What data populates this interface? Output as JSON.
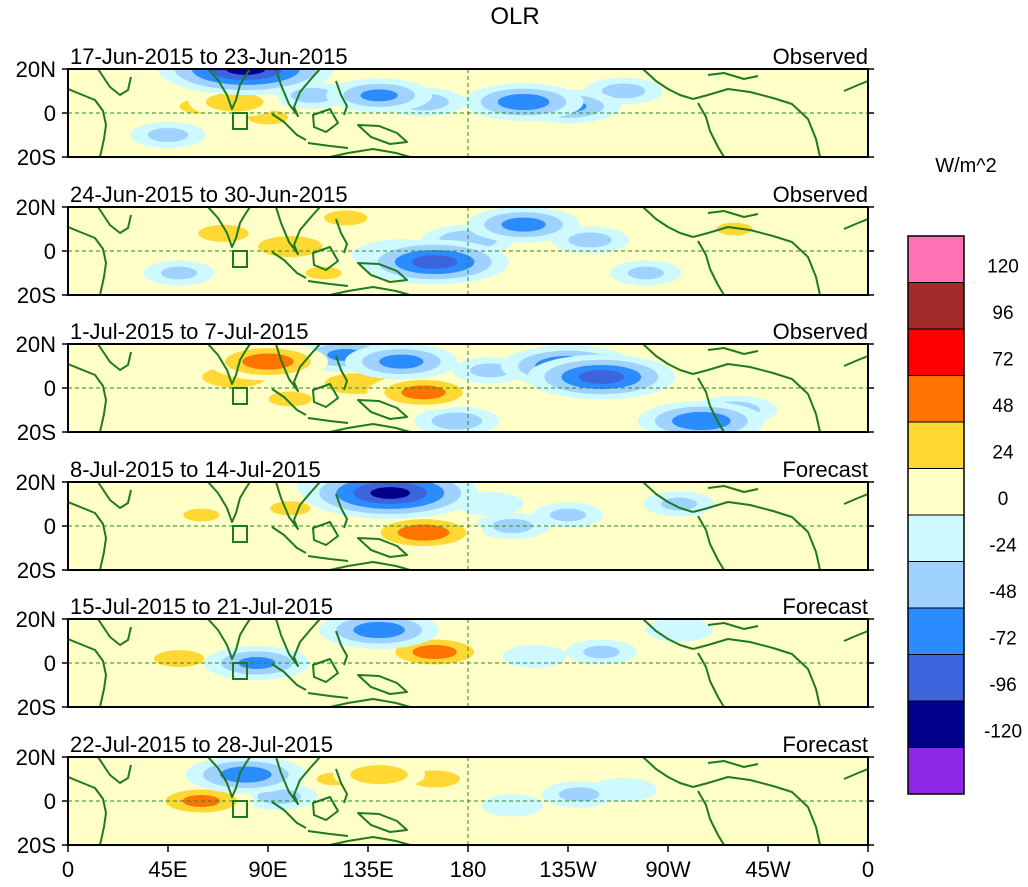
{
  "title": "OLR",
  "colorbar": {
    "unit": "W/m^2",
    "levels": [
      "120",
      "96",
      "72",
      "48",
      "24",
      "0",
      "-24",
      "-48",
      "-72",
      "-96",
      "-120"
    ],
    "colors": [
      "#ff73b6",
      "#a52a2a",
      "#ff0000",
      "#ff7400",
      "#ffd834",
      "#ffffc8",
      "#cdf9ff",
      "#a0d2ff",
      "#2a8cff",
      "#3c64dc",
      "#00008c",
      "#8c28e6"
    ]
  },
  "y_ticks": [
    "20N",
    "0",
    "20S"
  ],
  "x_ticks": [
    "0",
    "45E",
    "90E",
    "135E",
    "180",
    "135W",
    "90W",
    "45W",
    "0"
  ],
  "panels": [
    {
      "period": "17-Jun-2015 to 23-Jun-2015",
      "status": "Observed"
    },
    {
      "period": "24-Jun-2015 to 30-Jun-2015",
      "status": "Observed"
    },
    {
      "period": "1-Jul-2015 to 7-Jul-2015",
      "status": "Observed"
    },
    {
      "period": "8-Jul-2015 to 14-Jul-2015",
      "status": "Forecast"
    },
    {
      "period": "15-Jul-2015 to 21-Jul-2015",
      "status": "Forecast"
    },
    {
      "period": "22-Jul-2015 to 28-Jul-2015",
      "status": "Forecast"
    }
  ],
  "anomalies": [
    [
      {
        "lon": 75,
        "lat": 5,
        "v": 40
      },
      {
        "lon": 60,
        "lat": 3,
        "v": 30
      },
      {
        "lon": 90,
        "lat": -2,
        "v": 28
      },
      {
        "lon": 30,
        "lat": 8,
        "v": 15
      },
      {
        "lon": 85,
        "lat": 18,
        "v": -60
      },
      {
        "lon": 80,
        "lat": 20,
        "v": -100
      },
      {
        "lon": 140,
        "lat": 8,
        "v": -50
      },
      {
        "lon": 160,
        "lat": 5,
        "v": -35
      },
      {
        "lon": 205,
        "lat": 5,
        "v": -60
      },
      {
        "lon": 225,
        "lat": 3,
        "v": -50
      },
      {
        "lon": 250,
        "lat": 10,
        "v": -30
      },
      {
        "lon": 110,
        "lat": 8,
        "v": -30
      },
      {
        "lon": 330,
        "lat": 5,
        "v": 18
      },
      {
        "lon": 45,
        "lat": -10,
        "v": -28
      },
      {
        "lon": 300,
        "lat": -5,
        "v": 8
      },
      {
        "lon": 180,
        "lat": -8,
        "v": 12
      }
    ],
    [
      {
        "lon": 70,
        "lat": 8,
        "v": 35
      },
      {
        "lon": 100,
        "lat": 2,
        "v": 45
      },
      {
        "lon": 125,
        "lat": 15,
        "v": 30
      },
      {
        "lon": 150,
        "lat": -2,
        "v": -45
      },
      {
        "lon": 165,
        "lat": -5,
        "v": -80
      },
      {
        "lon": 205,
        "lat": 12,
        "v": -55
      },
      {
        "lon": 235,
        "lat": 5,
        "v": -30
      },
      {
        "lon": 180,
        "lat": 5,
        "v": -40
      },
      {
        "lon": 40,
        "lat": 10,
        "v": 18
      },
      {
        "lon": 260,
        "lat": -10,
        "v": -25
      },
      {
        "lon": 300,
        "lat": 10,
        "v": 25
      },
      {
        "lon": 330,
        "lat": 2,
        "v": 15
      },
      {
        "lon": 50,
        "lat": -10,
        "v": -25
      },
      {
        "lon": 115,
        "lat": -10,
        "v": 25
      }
    ],
    [
      {
        "lon": 90,
        "lat": 12,
        "v": 60
      },
      {
        "lon": 75,
        "lat": 5,
        "v": 45
      },
      {
        "lon": 130,
        "lat": 2,
        "v": 45
      },
      {
        "lon": 160,
        "lat": -2,
        "v": 55
      },
      {
        "lon": 100,
        "lat": -5,
        "v": 30
      },
      {
        "lon": 125,
        "lat": 15,
        "v": -50
      },
      {
        "lon": 150,
        "lat": 12,
        "v": -55
      },
      {
        "lon": 225,
        "lat": 10,
        "v": -70
      },
      {
        "lon": 240,
        "lat": 5,
        "v": -80
      },
      {
        "lon": 285,
        "lat": -15,
        "v": -65
      },
      {
        "lon": 300,
        "lat": -10,
        "v": -35
      },
      {
        "lon": 190,
        "lat": 8,
        "v": -28
      },
      {
        "lon": 40,
        "lat": 5,
        "v": 20
      },
      {
        "lon": 340,
        "lat": 3,
        "v": 15
      },
      {
        "lon": 175,
        "lat": -15,
        "v": -35
      }
    ],
    [
      {
        "lon": 145,
        "lat": 15,
        "v": -100
      },
      {
        "lon": 130,
        "lat": 18,
        "v": -60
      },
      {
        "lon": 160,
        "lat": -3,
        "v": 60
      },
      {
        "lon": 60,
        "lat": 5,
        "v": 25
      },
      {
        "lon": 100,
        "lat": 8,
        "v": 28
      },
      {
        "lon": 105,
        "lat": -10,
        "v": 20
      },
      {
        "lon": 200,
        "lat": 0,
        "v": -28
      },
      {
        "lon": 225,
        "lat": 5,
        "v": -25
      },
      {
        "lon": 275,
        "lat": 10,
        "v": -25
      },
      {
        "lon": 190,
        "lat": 10,
        "v": -22
      },
      {
        "lon": 40,
        "lat": -15,
        "v": 15
      },
      {
        "lon": 320,
        "lat": -10,
        "v": 10
      },
      {
        "lon": 250,
        "lat": -12,
        "v": 8
      }
    ],
    [
      {
        "lon": 150,
        "lat": 12,
        "v": 30
      },
      {
        "lon": 165,
        "lat": 5,
        "v": 55
      },
      {
        "lon": 50,
        "lat": 2,
        "v": 35
      },
      {
        "lon": 85,
        "lat": 0,
        "v": -50
      },
      {
        "lon": 140,
        "lat": 15,
        "v": -60
      },
      {
        "lon": 110,
        "lat": 5,
        "v": 20
      },
      {
        "lon": 240,
        "lat": 5,
        "v": -25
      },
      {
        "lon": 210,
        "lat": 3,
        "v": -20
      },
      {
        "lon": 275,
        "lat": 15,
        "v": -22
      },
      {
        "lon": 60,
        "lat": 15,
        "v": 22
      },
      {
        "lon": 180,
        "lat": -10,
        "v": 15
      },
      {
        "lon": 300,
        "lat": 12,
        "v": 10
      }
    ],
    [
      {
        "lon": 140,
        "lat": 12,
        "v": 40
      },
      {
        "lon": 165,
        "lat": 10,
        "v": 35
      },
      {
        "lon": 120,
        "lat": 10,
        "v": 25
      },
      {
        "lon": 60,
        "lat": 0,
        "v": 50
      },
      {
        "lon": 80,
        "lat": 12,
        "v": -60
      },
      {
        "lon": 95,
        "lat": 2,
        "v": -30
      },
      {
        "lon": 230,
        "lat": 3,
        "v": -28
      },
      {
        "lon": 250,
        "lat": 5,
        "v": -22
      },
      {
        "lon": 200,
        "lat": -2,
        "v": -18
      },
      {
        "lon": 40,
        "lat": 12,
        "v": 20
      },
      {
        "lon": 150,
        "lat": -10,
        "v": 15
      },
      {
        "lon": 310,
        "lat": 15,
        "v": 10
      }
    ]
  ]
}
